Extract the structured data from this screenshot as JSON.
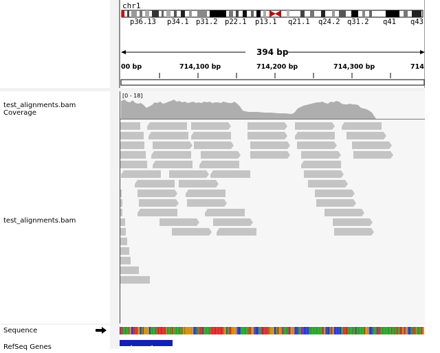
{
  "chromosome": {
    "name": "chr1"
  },
  "ideogram_bands": [
    "p36.13",
    "p34.1",
    "p31.2",
    "p22.1",
    "p13.1",
    "q21.1",
    "q24.2",
    "q31.2",
    "q41",
    "q43"
  ],
  "ruler": {
    "span_label": "394 bp",
    "ticks": [
      "00 bp",
      "714,100 bp",
      "714,200 bp",
      "714,300 bp",
      "714"
    ]
  },
  "tracks": {
    "coverage": {
      "name": "test_alignments.bam Coverage",
      "range": "[0 - 18]"
    },
    "alignments": {
      "name": "test_alignments.bam"
    },
    "sequence": {
      "name": "Sequence"
    },
    "genes": {
      "name": "RefSeq Genes"
    }
  },
  "colors": {
    "read": "#c4c4c4",
    "coverage": "#aeaeae",
    "gene": "#1421b3",
    "base_a": "#22a022",
    "base_c": "#2233dd",
    "base_g": "#d48a00",
    "base_t": "#dd2222"
  }
}
